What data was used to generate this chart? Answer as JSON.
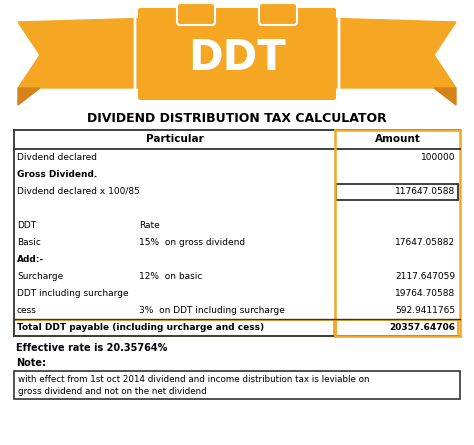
{
  "title": "DIVIDEND DISTRIBUTION TAX CALCULATOR",
  "banner_text": "DDT",
  "banner_color": "#F5A623",
  "banner_dark": "#D4831A",
  "header_particular": "Particular",
  "header_amount": "Amount",
  "rows": [
    {
      "particular": "Divdend declared",
      "particular2": "",
      "amount": "100000",
      "bold_particular": false,
      "bold_amount": false,
      "highlighted": false,
      "separator_above": false
    },
    {
      "particular": "Gross Dividend.",
      "particular2": "",
      "amount": "",
      "bold_particular": true,
      "bold_amount": false,
      "highlighted": false,
      "separator_above": false
    },
    {
      "particular": "Divdend declared x 100/85",
      "particular2": "",
      "amount": "117647.0588",
      "bold_particular": false,
      "bold_amount": false,
      "highlighted": true,
      "highlighted_dark": true,
      "separator_above": false
    },
    {
      "particular": "",
      "particular2": "",
      "amount": "",
      "bold_particular": false,
      "bold_amount": false,
      "highlighted": false,
      "separator_above": false
    },
    {
      "particular": "DDT",
      "particular2": "Rate",
      "amount": "",
      "bold_particular": false,
      "bold_amount": false,
      "highlighted": false,
      "separator_above": false
    },
    {
      "particular": "Basic",
      "particular2": "15%  on gross dividend",
      "amount": "17647.05882",
      "bold_particular": false,
      "bold_amount": false,
      "highlighted": false,
      "separator_above": false
    },
    {
      "particular": "Add:-",
      "particular2": "",
      "amount": "",
      "bold_particular": true,
      "bold_amount": false,
      "highlighted": false,
      "separator_above": false
    },
    {
      "particular": "Surcharge",
      "particular2": "12%  on basic",
      "amount": "2117.647059",
      "bold_particular": false,
      "bold_amount": false,
      "highlighted": false,
      "separator_above": false
    },
    {
      "particular": "DDT including surcharge",
      "particular2": "",
      "amount": "19764.70588",
      "bold_particular": false,
      "bold_amount": false,
      "highlighted": false,
      "separator_above": false
    },
    {
      "particular": "cess",
      "particular2": "3%  on DDT including surcharge",
      "amount": "592.9411765",
      "bold_particular": false,
      "bold_amount": false,
      "highlighted": false,
      "separator_above": false
    },
    {
      "particular": "Total DDT payable (including urcharge and cess)",
      "particular2": "",
      "amount": "20357.64706",
      "bold_particular": true,
      "bold_amount": true,
      "highlighted": true,
      "highlighted_dark": false,
      "separator_above": true
    }
  ],
  "effective_rate": "Effective rate is 20.35764%",
  "note_label": "Note:",
  "note_text": "with effect from 1st oct 2014 dividend and income distribution tax is leviable on\ngross dividend and not on the net dividend",
  "bg_color": "#FFFFFF",
  "orange_color": "#F5A623",
  "dark_color": "#333333"
}
